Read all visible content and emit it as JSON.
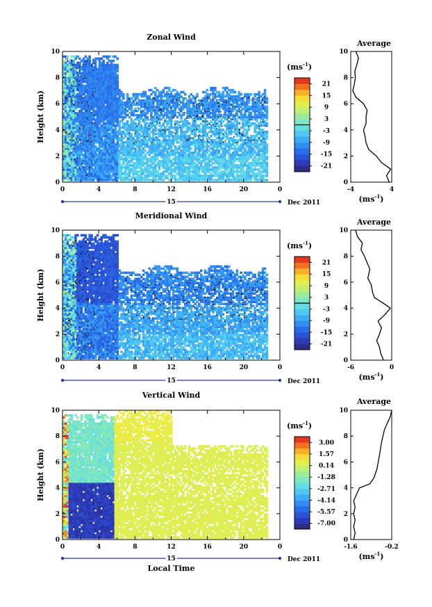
{
  "chart_data": [
    {
      "type": "heatmap",
      "title": "Zonal Wind",
      "ylabel": "Height (km)",
      "xlim": [
        0,
        24
      ],
      "ylim": [
        0,
        10
      ],
      "x_ticks": [
        "0",
        "4",
        "8",
        "12",
        "16",
        "20",
        "0"
      ],
      "y_ticks": [
        "0",
        "2",
        "4",
        "6",
        "8",
        "10"
      ],
      "date_axis": {
        "day_label": "15",
        "month_label": "Dec 2011"
      },
      "colorbar": {
        "unit": "(ms",
        "unit_exp": "-1",
        "unit_close": ")",
        "range": [
          -24,
          24
        ],
        "ticks": [
          "21",
          "15",
          "9",
          "3",
          "-3",
          "-9",
          "-15",
          "-21"
        ],
        "marker": 0
      },
      "average": {
        "title": "Average",
        "xlabel": "(ms",
        "xlabel_exp": "-1",
        "xlabel_close": ")",
        "xlim": [
          -4,
          4
        ],
        "x_ticks": [
          "-4",
          "4"
        ],
        "y_ticks": [
          "0",
          "2",
          "4",
          "6",
          "8",
          "10"
        ],
        "profile": [
          [
            0.0,
            3.5
          ],
          [
            0.5,
            3.0
          ],
          [
            1.0,
            3.8
          ],
          [
            1.5,
            2.0
          ],
          [
            2.0,
            1.0
          ],
          [
            2.5,
            -0.5
          ],
          [
            3.0,
            -1.0
          ],
          [
            3.5,
            -1.2
          ],
          [
            4.0,
            -1.5
          ],
          [
            4.5,
            -1.0
          ],
          [
            5.0,
            -1.0
          ],
          [
            5.5,
            -0.8
          ],
          [
            6.0,
            -1.5
          ],
          [
            6.5,
            -3.0
          ],
          [
            7.0,
            -3.6
          ],
          [
            7.5,
            -3.3
          ],
          [
            8.0,
            -3.1
          ],
          [
            8.5,
            -3.2
          ],
          [
            9.0,
            -2.8
          ],
          [
            9.5,
            -2.5
          ],
          [
            10.0,
            -3.0
          ]
        ]
      },
      "field": {
        "type": "zonal",
        "base": -6,
        "upper": -10,
        "upper_start": 4.8,
        "noise": 3,
        "early_mean": -12
      }
    },
    {
      "type": "heatmap",
      "title": "Meridional Wind",
      "ylabel": "Height (km)",
      "xlim": [
        0,
        24
      ],
      "ylim": [
        0,
        10
      ],
      "x_ticks": [
        "0",
        "4",
        "8",
        "12",
        "16",
        "20",
        "0"
      ],
      "y_ticks": [
        "0",
        "2",
        "4",
        "6",
        "8",
        "10"
      ],
      "date_axis": {
        "day_label": "15",
        "month_label": "Dec 2011"
      },
      "colorbar": {
        "unit": "(ms",
        "unit_exp": "-1",
        "unit_close": ")",
        "range": [
          -24,
          24
        ],
        "ticks": [
          "21",
          "15",
          "9",
          "3",
          "-3",
          "-9",
          "-15",
          "-21"
        ],
        "marker": 0
      },
      "average": {
        "title": "Average",
        "xlabel": "(ms",
        "xlabel_exp": "-1",
        "xlabel_close": ")",
        "xlim": [
          -6,
          0
        ],
        "x_ticks": [
          "-6",
          "0"
        ],
        "y_ticks": [
          "0",
          "2",
          "4",
          "6",
          "8",
          "10"
        ],
        "profile": [
          [
            0.0,
            -1.2
          ],
          [
            0.5,
            -1.6
          ],
          [
            1.0,
            -1.8
          ],
          [
            1.5,
            -2.2
          ],
          [
            2.0,
            -1.8
          ],
          [
            2.5,
            -1.5
          ],
          [
            3.0,
            -2.0
          ],
          [
            3.5,
            -1.0
          ],
          [
            4.0,
            -0.2
          ],
          [
            4.3,
            -1.0
          ],
          [
            4.8,
            -2.5
          ],
          [
            5.2,
            -2.8
          ],
          [
            5.8,
            -3.0
          ],
          [
            6.3,
            -3.5
          ],
          [
            7.0,
            -3.2
          ],
          [
            7.5,
            -3.6
          ],
          [
            8.0,
            -4.0
          ],
          [
            8.5,
            -4.5
          ],
          [
            9.0,
            -4.3
          ],
          [
            9.5,
            -5.0
          ],
          [
            10.0,
            -5.3
          ]
        ]
      },
      "field": {
        "type": "meridional",
        "base": -8,
        "upper": -11,
        "upper_start": 4.2,
        "noise": 3,
        "early_mean": -16
      }
    },
    {
      "type": "heatmap",
      "title": "Vertical Wind",
      "ylabel": "Height (km)",
      "xlabel": "Local Time",
      "xlim": [
        0,
        24
      ],
      "ylim": [
        0,
        10
      ],
      "x_ticks": [
        "0",
        "4",
        "8",
        "12",
        "16",
        "20",
        "0"
      ],
      "y_ticks": [
        "0",
        "2",
        "4",
        "6",
        "8",
        "10"
      ],
      "date_axis": {
        "day_label": "15",
        "month_label": "Dec 2011"
      },
      "colorbar": {
        "unit": "(ms",
        "unit_exp": "-1",
        "unit_close": ")",
        "range": [
          -8.1,
          4.1
        ],
        "ticks": [
          "3.00",
          "1.57",
          "0.14",
          "-1.28",
          "-2.71",
          "-4.14",
          "-5.57",
          "-7.00"
        ],
        "marker": null
      },
      "average": {
        "title": "Average",
        "xlabel": "(ms",
        "xlabel_exp": "-1",
        "xlabel_close": ")",
        "xlim": [
          -1.6,
          -0.2
        ],
        "x_ticks": [
          "-1.6",
          "-0.2"
        ],
        "y_ticks": [
          "0",
          "2",
          "4",
          "6",
          "8",
          "10"
        ],
        "profile": [
          [
            0.0,
            -1.5
          ],
          [
            0.5,
            -1.45
          ],
          [
            1.0,
            -1.5
          ],
          [
            1.5,
            -1.45
          ],
          [
            2.0,
            -1.5
          ],
          [
            2.5,
            -1.45
          ],
          [
            3.0,
            -1.5
          ],
          [
            3.5,
            -1.4
          ],
          [
            4.0,
            -1.3
          ],
          [
            4.3,
            -0.95
          ],
          [
            4.8,
            -0.8
          ],
          [
            5.5,
            -0.7
          ],
          [
            6.5,
            -0.62
          ],
          [
            7.5,
            -0.55
          ],
          [
            8.5,
            -0.45
          ],
          [
            9.0,
            -0.35
          ],
          [
            9.5,
            -0.25
          ],
          [
            10.0,
            -0.2
          ]
        ]
      },
      "field": {
        "type": "vertical",
        "base": 0.6,
        "upper": 0.9,
        "upper_start": 7.5,
        "noise": 0.4,
        "early_mean": -7.5
      }
    }
  ]
}
